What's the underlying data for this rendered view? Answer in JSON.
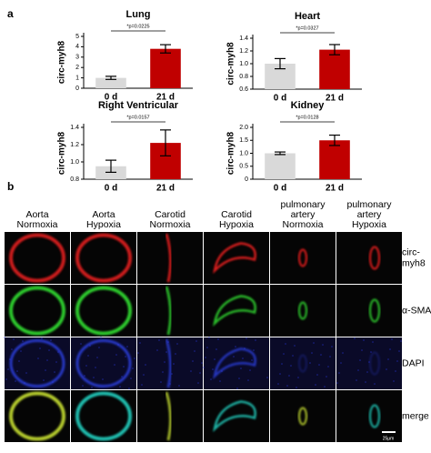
{
  "panel_a_label": "a",
  "chart_data": [
    {
      "type": "bar",
      "title": "Lung",
      "ylabel": "circ-myh8",
      "categories": [
        "0 d",
        "21 d"
      ],
      "values": [
        1.0,
        3.8
      ],
      "errors": [
        0.15,
        0.4
      ],
      "colors": [
        "#d9d9d9",
        "#c00000"
      ],
      "ylim": [
        0,
        5
      ],
      "yticks": [
        0,
        1,
        2,
        3,
        4,
        5
      ],
      "annotation": "*p=0.0225"
    },
    {
      "type": "bar",
      "title": "Heart",
      "ylabel": "circ-myh8",
      "categories": [
        "0 d",
        "21 d"
      ],
      "values": [
        1.0,
        1.22
      ],
      "errors": [
        0.08,
        0.08
      ],
      "colors": [
        "#d9d9d9",
        "#c00000"
      ],
      "ylim": [
        0.6,
        1.4
      ],
      "yticks": [
        0.6,
        0.8,
        {
          "value": 1,
          "label": "1.0"
        },
        1.2,
        1.4
      ],
      "annotation": "*p=0.0327"
    },
    {
      "type": "bar",
      "title": "Right Ventricular",
      "ylabel": "circ-myh8",
      "categories": [
        "0 d",
        "21 d"
      ],
      "values": [
        0.95,
        1.22
      ],
      "errors": [
        0.07,
        0.15
      ],
      "colors": [
        "#d9d9d9",
        "#c00000"
      ],
      "ylim": [
        0.8,
        1.4
      ],
      "yticks": [
        0.8,
        {
          "value": 1,
          "label": "1.0"
        },
        1.2,
        1.4
      ],
      "annotation": "*p=0.0157"
    },
    {
      "type": "bar",
      "title": "Kidney",
      "ylabel": "circ-myh8",
      "categories": [
        "0 d",
        "21 d"
      ],
      "values": [
        1.0,
        1.5
      ],
      "errors": [
        0.05,
        0.2
      ],
      "colors": [
        "#d9d9d9",
        "#c00000"
      ],
      "ylim": [
        0,
        2
      ],
      "yticks": [
        0,
        0.5,
        {
          "value": 1,
          "label": "1.0"
        },
        1.5,
        {
          "value": 2,
          "label": "2.0"
        }
      ],
      "annotation": "*p=0.0128"
    }
  ],
  "panel_b": {
    "label": "b",
    "columns": [
      [
        "Aorta",
        "Normoxia"
      ],
      [
        "Aorta",
        "Hypoxia"
      ],
      [
        "Carotid",
        "Normoxia"
      ],
      [
        "Carotid",
        "Hypoxia"
      ],
      [
        "pulmonary",
        "artery",
        "Normoxia"
      ],
      [
        "pulmonary",
        "artery",
        "Hypoxia"
      ]
    ],
    "rows": [
      [
        "circ-",
        "myh8"
      ],
      [
        "α-SMA"
      ],
      [
        "DAPI"
      ],
      [
        "merge"
      ]
    ],
    "scale_bar": "25μm"
  }
}
